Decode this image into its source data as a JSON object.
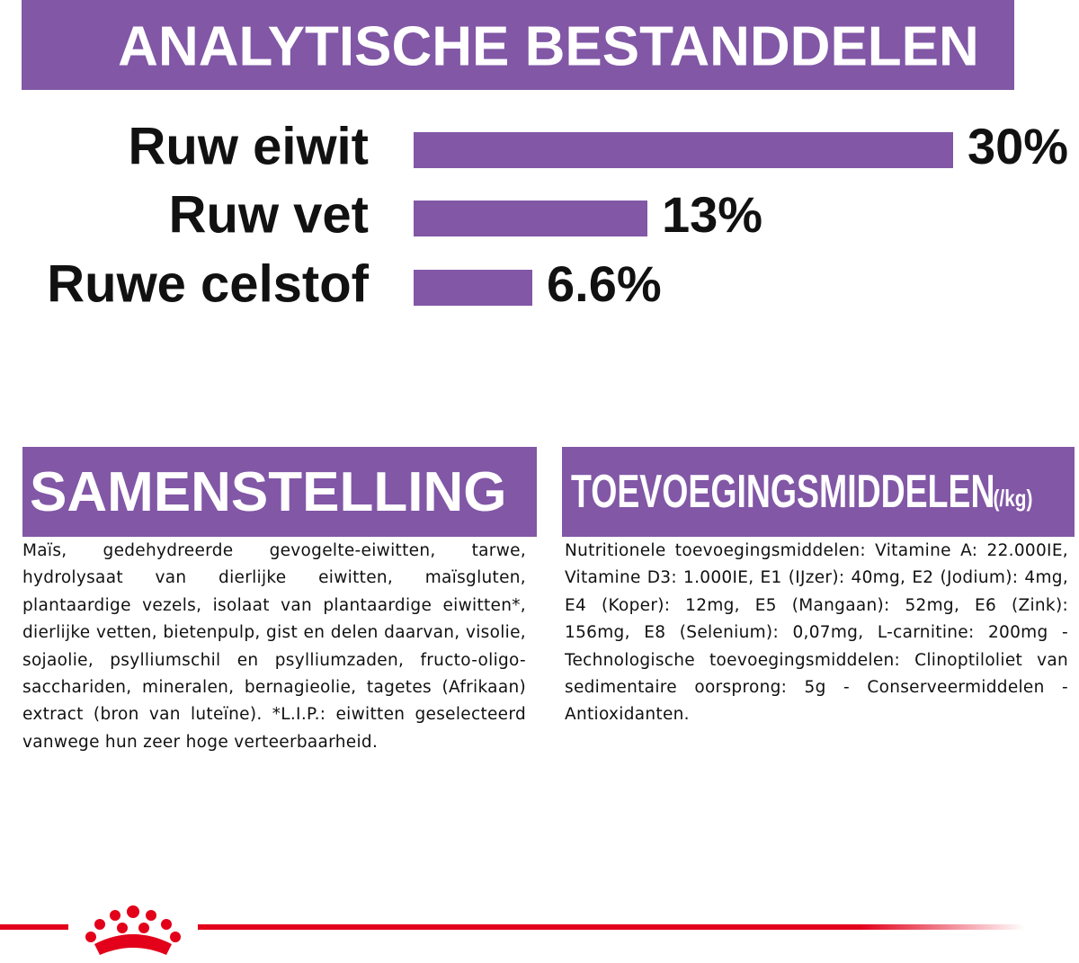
{
  "chart_data": {
    "type": "bar",
    "title": "ANALYTISCHE BESTANDDELEN",
    "categories": [
      "Ruw eiwit",
      "Ruw vet",
      "Ruwe celstof"
    ],
    "values": [
      30,
      13,
      6.6
    ],
    "value_labels": [
      "30%",
      "13%",
      "6.6%"
    ],
    "color": "#8157a6"
  },
  "composition": {
    "title": "SAMENSTELLING",
    "text": "Maïs, gedehydreerde gevogelte-eiwitten, tarwe, hydrolysaat van dierlijke eiwitten, maïsgluten, plantaardige vezels, isolaat van plantaardige eiwitten*, dierlijke vetten, bietenpulp, gist en delen daarvan, visolie, sojaolie, psylliumschil en psylliumzaden, fructo-oligo-sacchariden, mineralen, bernagieolie, tagetes (Afrikaan) extract (bron van luteïne). *L.I.P.: eiwitten geselecteerd vanwege hun zeer hoge verteerbaarheid."
  },
  "additives": {
    "title": "TOEVOEGINGSMIDDELEN",
    "unit": "(/kg)",
    "text": "Nutritionele toevoegingsmiddelen: Vitamine A: 22.000IE, Vitamine D3: 1.000IE, E1 (IJzer): 40mg, E2 (Jodium): 4mg, E4 (Koper): 12mg, E5 (Mangaan): 52mg, E6 (Zink): 156mg, E8 (Selenium): 0,07mg, L-carnitine: 200mg - Technologische toevoegingsmiddelen: Clinoptiloliet van sedimentaire oorsprong: 5g - Conserveermiddelen - Antioxidanten."
  }
}
